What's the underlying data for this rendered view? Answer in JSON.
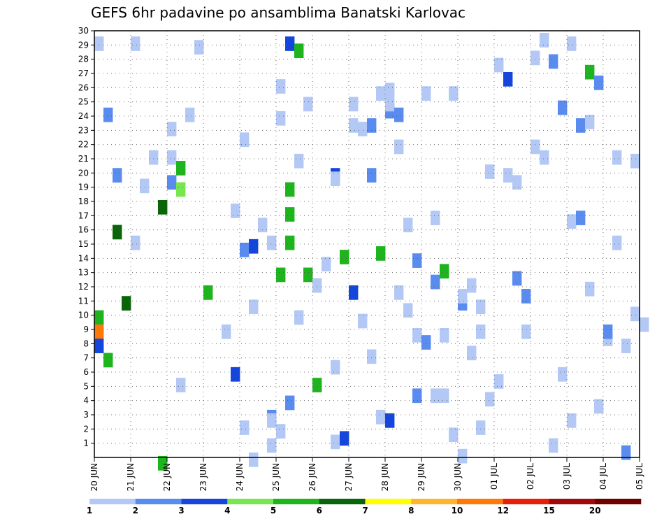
{
  "chart_data": {
    "type": "heatmap",
    "title": "GEFS 6hr padavine po ansamblima Banatski Karlovac",
    "x_ticks": [
      "20 JUN",
      "21 JUN",
      "22 JUN",
      "23 JUN",
      "24 JUN",
      "25 JUN",
      "26 JUN",
      "27 JUN",
      "28 JUN",
      "29 JUN",
      "30 JUN",
      "01 JUL",
      "02 JUL",
      "03 JUL",
      "04 JUL",
      "05 JUL"
    ],
    "y_ticks": [
      "1",
      "2",
      "3",
      "4",
      "5",
      "6",
      "7",
      "8",
      "9",
      "10",
      "11",
      "12",
      "13",
      "14",
      "15",
      "16",
      "17",
      "18",
      "19",
      "20",
      "21",
      "22",
      "23",
      "24",
      "25",
      "26",
      "27",
      "28",
      "29",
      "30"
    ],
    "x_range_days": [
      0,
      15
    ],
    "y_range": [
      0,
      30
    ],
    "grid": true,
    "legend": {
      "placement": "bottom",
      "labels": [
        "1",
        "2",
        "3",
        "4",
        "5",
        "6",
        "7",
        "8",
        "10",
        "12",
        "15",
        "20"
      ],
      "colors": [
        "#b4c8f5",
        "#5a8cf0",
        "#1446dc",
        "#78e650",
        "#1eb41e",
        "#0a640a",
        "#ffff00",
        "#ffb432",
        "#ff780a",
        "#e61e0a",
        "#a00a0a",
        "#6e0000"
      ]
    },
    "cells": [
      [
        0,
        29.6,
        1
      ],
      [
        0,
        10.35,
        5
      ],
      [
        0,
        9.35,
        9
      ],
      [
        0,
        8.35,
        3
      ],
      [
        1,
        24.6,
        2
      ],
      [
        1,
        7.35,
        5
      ],
      [
        2,
        16.35,
        6
      ],
      [
        2,
        20.35,
        2
      ],
      [
        3,
        11.35,
        6
      ],
      [
        4,
        15.6,
        1
      ],
      [
        4,
        29.6,
        1
      ],
      [
        5,
        19.6,
        1
      ],
      [
        6,
        21.6,
        1
      ],
      [
        7,
        0.1,
        5
      ],
      [
        7,
        18.1,
        6
      ],
      [
        8,
        19.85,
        2
      ],
      [
        8,
        23.6,
        1
      ],
      [
        8,
        21.6,
        1
      ],
      [
        9,
        5.6,
        1
      ],
      [
        9,
        19.35,
        4
      ],
      [
        9,
        20.85,
        5
      ],
      [
        10,
        24.6,
        1
      ],
      [
        11,
        29.35,
        1
      ],
      [
        12,
        12.1,
        5
      ],
      [
        14,
        9.35,
        1
      ],
      [
        15,
        6.35,
        3
      ],
      [
        15,
        17.85,
        1
      ],
      [
        16,
        15.1,
        2
      ],
      [
        16,
        22.85,
        1
      ],
      [
        16,
        2.6,
        1
      ],
      [
        17,
        15.35,
        3
      ],
      [
        17,
        0.35,
        1
      ],
      [
        17,
        11.1,
        1
      ],
      [
        18,
        16.85,
        1
      ],
      [
        19,
        15.6,
        1
      ],
      [
        19,
        3.35,
        2
      ],
      [
        19,
        3.1,
        1
      ],
      [
        19,
        1.35,
        1
      ],
      [
        20,
        24.35,
        1
      ],
      [
        20,
        2.35,
        1
      ],
      [
        20,
        26.6,
        1
      ],
      [
        20,
        13.35,
        5
      ],
      [
        21,
        29.6,
        3
      ],
      [
        21,
        15.6,
        5
      ],
      [
        21,
        17.6,
        5
      ],
      [
        21,
        19.35,
        5
      ],
      [
        21,
        4.35,
        2
      ],
      [
        22,
        21.35,
        1
      ],
      [
        22,
        10.35,
        1
      ],
      [
        22,
        29.1,
        5
      ],
      [
        23,
        25.35,
        1
      ],
      [
        23,
        13.35,
        5
      ],
      [
        24,
        5.6,
        5
      ],
      [
        24,
        12.6,
        1
      ],
      [
        25,
        14.1,
        1
      ],
      [
        26,
        20.35,
        3
      ],
      [
        26,
        20.1,
        1
      ],
      [
        26,
        6.85,
        1
      ],
      [
        26,
        1.6,
        1
      ],
      [
        27,
        14.6,
        5
      ],
      [
        27,
        1.85,
        3
      ],
      [
        28,
        25.35,
        1
      ],
      [
        28,
        23.85,
        1
      ],
      [
        28,
        12.1,
        3
      ],
      [
        29,
        23.6,
        1
      ],
      [
        29,
        10.1,
        1
      ],
      [
        30,
        23.85,
        2
      ],
      [
        30,
        7.6,
        1
      ],
      [
        30,
        20.35,
        2
      ],
      [
        31,
        26.1,
        1
      ],
      [
        31,
        14.85,
        5
      ],
      [
        31,
        3.35,
        1
      ],
      [
        32,
        24.85,
        2
      ],
      [
        32,
        3.1,
        3
      ],
      [
        32,
        26.35,
        1
      ],
      [
        32,
        25.35,
        1
      ],
      [
        33,
        22.35,
        1
      ],
      [
        33,
        24.6,
        2
      ],
      [
        33,
        12.1,
        1
      ],
      [
        34,
        10.85,
        1
      ],
      [
        34,
        16.85,
        1
      ],
      [
        35,
        4.85,
        2
      ],
      [
        35,
        14.35,
        2
      ],
      [
        35,
        9.1,
        1
      ],
      [
        36,
        8.6,
        2
      ],
      [
        36,
        26.1,
        1
      ],
      [
        37,
        12.85,
        2
      ],
      [
        37,
        17.35,
        1
      ],
      [
        37,
        4.85,
        1
      ],
      [
        38,
        9.1,
        1
      ],
      [
        38,
        13.6,
        5
      ],
      [
        38,
        4.85,
        1
      ],
      [
        39,
        2.1,
        1
      ],
      [
        39,
        26.1,
        1
      ],
      [
        40,
        11.35,
        2
      ],
      [
        40,
        11.85,
        1
      ],
      [
        40,
        0.6,
        1
      ],
      [
        41,
        12.6,
        1
      ],
      [
        41,
        7.85,
        1
      ],
      [
        42,
        11.1,
        1
      ],
      [
        42,
        2.6,
        1
      ],
      [
        42,
        9.35,
        1
      ],
      [
        43,
        20.6,
        1
      ],
      [
        43,
        4.6,
        1
      ],
      [
        44,
        28.1,
        1
      ],
      [
        44,
        5.85,
        1
      ],
      [
        45,
        27.1,
        3
      ],
      [
        45,
        20.35,
        1
      ],
      [
        46,
        13.1,
        2
      ],
      [
        46,
        19.85,
        1
      ],
      [
        47,
        9.35,
        1
      ],
      [
        47,
        11.85,
        2
      ],
      [
        48,
        28.6,
        1
      ],
      [
        48,
        22.35,
        1
      ],
      [
        49,
        21.6,
        1
      ],
      [
        49,
        29.85,
        1
      ],
      [
        50,
        28.35,
        2
      ],
      [
        50,
        1.35,
        1
      ],
      [
        51,
        25.1,
        2
      ],
      [
        51,
        6.35,
        1
      ],
      [
        52,
        17.1,
        1
      ],
      [
        52,
        3.1,
        1
      ],
      [
        52,
        29.6,
        1
      ],
      [
        53,
        23.85,
        2
      ],
      [
        53,
        17.35,
        2
      ],
      [
        54,
        27.6,
        5
      ],
      [
        54,
        12.35,
        1
      ],
      [
        54,
        24.1,
        1
      ],
      [
        55,
        4.1,
        1
      ],
      [
        55,
        26.85,
        2
      ],
      [
        56,
        8.85,
        1
      ],
      [
        56,
        9.35,
        2
      ],
      [
        57,
        21.6,
        1
      ],
      [
        57,
        15.6,
        1
      ],
      [
        58,
        8.35,
        1
      ],
      [
        58,
        0.85,
        2
      ],
      [
        59,
        21.35,
        1
      ],
      [
        59,
        10.6,
        1
      ],
      [
        60,
        9.85,
        1
      ]
    ]
  }
}
